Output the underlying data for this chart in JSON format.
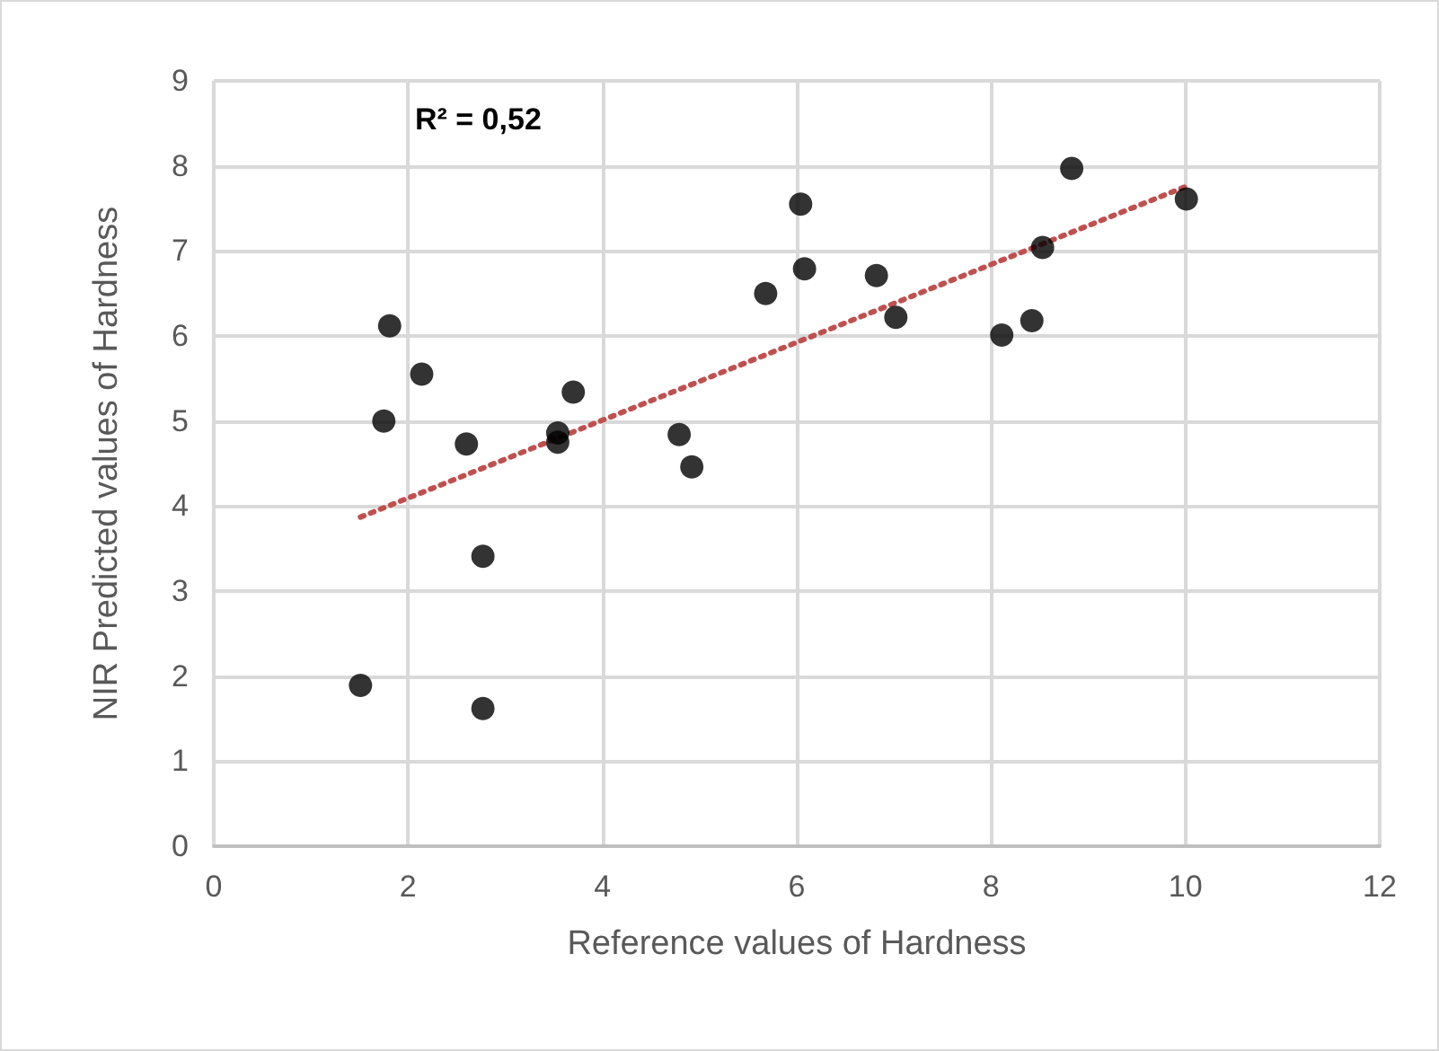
{
  "chart_data": {
    "type": "scatter",
    "xlabel": "Reference values of Hardness",
    "ylabel": "NIR Predicted values of Hardness",
    "annotations": [
      "R² = 0,52"
    ],
    "xlim": [
      0,
      12
    ],
    "xticks": [
      0,
      2,
      4,
      6,
      8,
      10,
      12
    ],
    "ylim": [
      0,
      9
    ],
    "yticks": [
      0,
      1,
      2,
      3,
      4,
      5,
      6,
      7,
      8,
      9
    ],
    "grid": true,
    "marker": "circle",
    "series": [
      {
        "color": "#000000",
        "x": [
          1.51,
          1.75,
          1.81,
          2.14,
          2.6,
          2.77,
          2.77,
          3.54,
          3.54,
          3.7,
          4.79,
          4.92,
          5.68,
          6.04,
          6.08,
          6.82,
          7.02,
          8.11,
          8.42,
          8.53,
          8.83,
          10.01
        ],
        "values": [
          1.89,
          5.0,
          6.12,
          5.55,
          4.73,
          3.41,
          1.62,
          4.86,
          4.75,
          5.34,
          4.84,
          4.46,
          6.5,
          7.55,
          6.79,
          6.71,
          6.22,
          6.01,
          6.18,
          7.04,
          7.97,
          7.61
        ]
      },
      {
        "type": "line",
        "color": "#c0504d",
        "line_style": "dotted",
        "marker": "none",
        "x": [
          1.51,
          10.01
        ],
        "values": [
          3.87,
          7.76
        ]
      }
    ]
  }
}
